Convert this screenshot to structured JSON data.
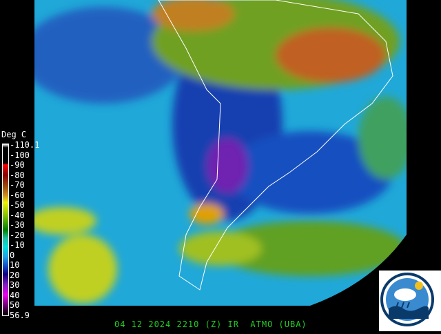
{
  "legend": {
    "title": "Deg C",
    "labels": [
      "-110.1",
      "-100",
      "-90",
      "-80",
      "-70",
      "-60",
      "-50",
      "-40",
      "-30",
      "-20",
      "-10",
      "0",
      "10",
      "20",
      "30",
      "40",
      "50",
      "56.9"
    ]
  },
  "footer": "04 12 2024 2210 (Z) IR  ATMO (UBA)",
  "colors": {
    "footer": "#20d020",
    "ocean_clear": "#20b0d0",
    "cold_clouds": "#f0f000"
  }
}
